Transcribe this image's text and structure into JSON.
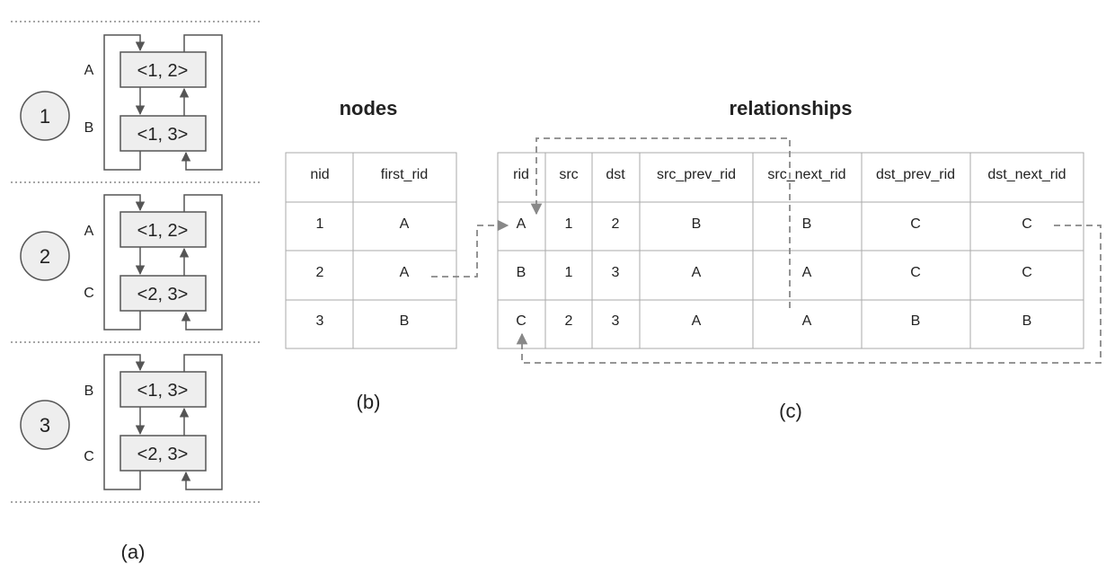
{
  "panel_a": {
    "caption": "(a)",
    "groups": [
      {
        "node": "1",
        "top_label": "A",
        "top_box": "<1, 2>",
        "bottom_label": "B",
        "bottom_box": "<1, 3>"
      },
      {
        "node": "2",
        "top_label": "A",
        "top_box": "<1, 2>",
        "bottom_label": "C",
        "bottom_box": "<2, 3>"
      },
      {
        "node": "3",
        "top_label": "B",
        "top_box": "<1, 3>",
        "bottom_label": "C",
        "bottom_box": "<2, 3>"
      }
    ]
  },
  "panel_b": {
    "caption": "(b)",
    "title": "nodes",
    "headers": [
      "nid",
      "first_rid"
    ],
    "rows": [
      [
        "1",
        "A"
      ],
      [
        "2",
        "A"
      ],
      [
        "3",
        "B"
      ]
    ]
  },
  "panel_c": {
    "caption": "(c)",
    "title": "relationships",
    "headers": [
      "rid",
      "src",
      "dst",
      "src_prev_rid",
      "src_next_rid",
      "dst_prev_rid",
      "dst_next_rid"
    ],
    "rows": [
      [
        "A",
        "1",
        "2",
        "B",
        "B",
        "C",
        "C"
      ],
      [
        "B",
        "1",
        "3",
        "A",
        "A",
        "C",
        "C"
      ],
      [
        "C",
        "2",
        "3",
        "A",
        "A",
        "B",
        "B"
      ]
    ]
  },
  "colors": {
    "line": "#555555",
    "box_fill": "#eeeeee",
    "grid": "#aaaaaa",
    "dash": "#888888"
  }
}
